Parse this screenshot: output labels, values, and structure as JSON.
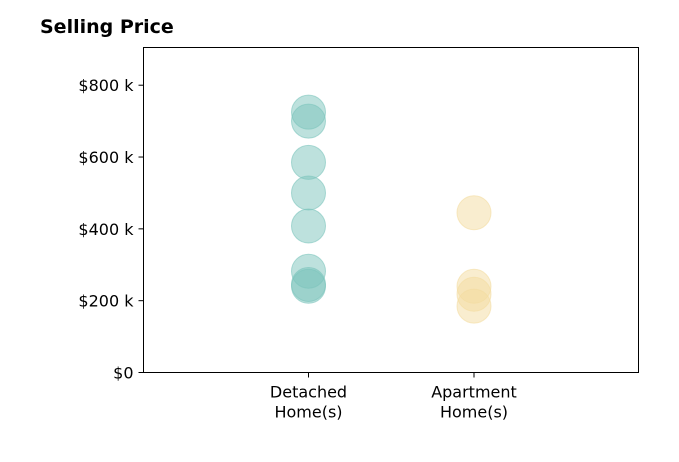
{
  "chart_data": {
    "type": "scatter",
    "title": "Selling Price",
    "categories": [
      "Detached\nHome(s)",
      "Apartment\nHome(s)"
    ],
    "y_ticks": [
      0,
      200,
      400,
      600,
      800
    ],
    "y_tick_labels": [
      "$0",
      "$200 k",
      "$400 k",
      "$600 k",
      "$800 k"
    ],
    "ylim": [
      0,
      905
    ],
    "series": [
      {
        "category": "Detached\nHome(s)",
        "color": "#7cc4bc",
        "values": [
          725,
          700,
          585,
          500,
          408,
          282,
          245,
          240
        ]
      },
      {
        "category": "Apartment\nHome(s)",
        "color": "#f3dca0",
        "values": [
          445,
          240,
          218,
          185
        ]
      }
    ],
    "grid": false,
    "legend": "none"
  }
}
